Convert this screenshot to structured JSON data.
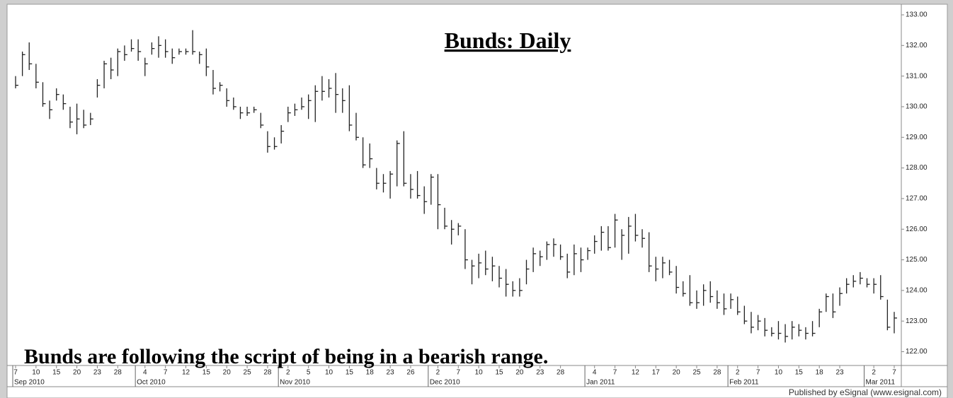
{
  "chart_data": {
    "type": "hlc",
    "title": "Bunds: Daily",
    "annotation": "Bunds are following the script of being in a bearish range.",
    "credit": "Published by eSignal (www.esignal.com)",
    "color": "#222222",
    "x": [
      "2010-09-07",
      "2010-09-08",
      "2010-09-09",
      "2010-09-10",
      "2010-09-13",
      "2010-09-14",
      "2010-09-15",
      "2010-09-16",
      "2010-09-17",
      "2010-09-20",
      "2010-09-21",
      "2010-09-22",
      "2010-09-23",
      "2010-09-24",
      "2010-09-27",
      "2010-09-28",
      "2010-09-29",
      "2010-09-30",
      "2010-10-01",
      "2010-10-04",
      "2010-10-05",
      "2010-10-06",
      "2010-10-07",
      "2010-10-08",
      "2010-10-11",
      "2010-10-12",
      "2010-10-13",
      "2010-10-14",
      "2010-10-15",
      "2010-10-18",
      "2010-10-19",
      "2010-10-20",
      "2010-10-21",
      "2010-10-22",
      "2010-10-25",
      "2010-10-26",
      "2010-10-27",
      "2010-10-28",
      "2010-10-29",
      "2010-11-01",
      "2010-11-02",
      "2010-11-03",
      "2010-11-04",
      "2010-11-05",
      "2010-11-08",
      "2010-11-09",
      "2010-11-10",
      "2010-11-11",
      "2010-11-12",
      "2010-11-15",
      "2010-11-16",
      "2010-11-17",
      "2010-11-18",
      "2010-11-19",
      "2010-11-22",
      "2010-11-23",
      "2010-11-24",
      "2010-11-25",
      "2010-11-26",
      "2010-11-29",
      "2010-11-30",
      "2010-12-01",
      "2010-12-02",
      "2010-12-03",
      "2010-12-06",
      "2010-12-07",
      "2010-12-08",
      "2010-12-09",
      "2010-12-10",
      "2010-12-13",
      "2010-12-14",
      "2010-12-15",
      "2010-12-16",
      "2010-12-17",
      "2010-12-20",
      "2010-12-21",
      "2010-12-22",
      "2010-12-23",
      "2010-12-24",
      "2010-12-27",
      "2010-12-28",
      "2010-12-29",
      "2010-12-30",
      "2010-12-31",
      "2011-01-03",
      "2011-01-04",
      "2011-01-05",
      "2011-01-06",
      "2011-01-07",
      "2011-01-10",
      "2011-01-11",
      "2011-01-12",
      "2011-01-13",
      "2011-01-14",
      "2011-01-17",
      "2011-01-18",
      "2011-01-19",
      "2011-01-20",
      "2011-01-21",
      "2011-01-24",
      "2011-01-25",
      "2011-01-26",
      "2011-01-27",
      "2011-01-28",
      "2011-01-31",
      "2011-02-01",
      "2011-02-02",
      "2011-02-03",
      "2011-02-04",
      "2011-02-07",
      "2011-02-08",
      "2011-02-09",
      "2011-02-10",
      "2011-02-11",
      "2011-02-14",
      "2011-02-15",
      "2011-02-16",
      "2011-02-17",
      "2011-02-18",
      "2011-02-21",
      "2011-02-22",
      "2011-02-23",
      "2011-02-24",
      "2011-02-25",
      "2011-02-28",
      "2011-03-01",
      "2011-03-02",
      "2011-03-03",
      "2011-03-04",
      "2011-03-07"
    ],
    "high": [
      131.0,
      131.8,
      132.1,
      131.4,
      130.8,
      130.2,
      130.6,
      130.4,
      130.0,
      130.1,
      129.9,
      129.8,
      130.9,
      131.5,
      131.6,
      131.9,
      132.0,
      132.2,
      132.2,
      131.6,
      132.1,
      132.3,
      132.2,
      131.9,
      131.9,
      131.9,
      132.5,
      131.8,
      131.9,
      131.2,
      130.8,
      130.6,
      130.3,
      130.0,
      130.0,
      130.0,
      129.8,
      129.2,
      129.0,
      129.4,
      130.0,
      130.1,
      130.3,
      130.4,
      130.7,
      131.0,
      130.9,
      131.1,
      130.6,
      130.7,
      129.8,
      129.0,
      128.8,
      128.0,
      127.8,
      127.9,
      128.9,
      129.2,
      127.8,
      127.9,
      127.4,
      127.8,
      127.8,
      126.7,
      126.3,
      126.2,
      126.0,
      125.0,
      125.2,
      125.3,
      125.1,
      124.8,
      124.7,
      124.3,
      124.4,
      125.0,
      125.4,
      125.3,
      125.6,
      125.7,
      125.5,
      125.2,
      125.5,
      125.4,
      125.4,
      125.8,
      126.1,
      126.1,
      126.5,
      126.0,
      126.4,
      126.5,
      126.0,
      125.9,
      125.1,
      125.1,
      125.0,
      124.8,
      124.3,
      124.5,
      124.0,
      124.2,
      124.3,
      124.0,
      123.9,
      123.9,
      123.8,
      123.5,
      123.3,
      123.2,
      123.1,
      122.8,
      123.0,
      122.9,
      123.0,
      122.9,
      122.8,
      123.0,
      123.4,
      123.9,
      123.9,
      124.1,
      124.4,
      124.5,
      124.6,
      124.4,
      124.4,
      124.5,
      123.7,
      123.3
    ],
    "low": [
      130.6,
      131.0,
      131.2,
      130.6,
      130.0,
      129.6,
      130.2,
      129.9,
      129.3,
      129.1,
      129.3,
      129.4,
      130.3,
      130.6,
      130.9,
      131.0,
      131.5,
      131.8,
      131.5,
      131.0,
      131.7,
      131.6,
      131.6,
      131.4,
      131.7,
      131.7,
      131.7,
      131.4,
      131.0,
      130.4,
      130.5,
      130.0,
      129.9,
      129.6,
      129.7,
      129.8,
      129.3,
      128.5,
      128.6,
      128.8,
      129.5,
      129.7,
      129.9,
      129.6,
      129.5,
      130.2,
      130.3,
      129.8,
      129.8,
      129.2,
      128.9,
      128.0,
      128.0,
      127.3,
      127.2,
      127.0,
      127.4,
      127.4,
      127.0,
      127.0,
      126.5,
      126.8,
      126.0,
      126.0,
      125.5,
      125.8,
      124.7,
      124.2,
      124.4,
      124.5,
      124.3,
      124.1,
      123.8,
      123.8,
      123.8,
      124.2,
      124.6,
      124.8,
      125.0,
      125.1,
      125.0,
      124.4,
      124.5,
      124.6,
      125.0,
      125.2,
      125.3,
      125.3,
      125.4,
      125.0,
      125.2,
      125.6,
      125.4,
      124.6,
      124.3,
      124.4,
      124.5,
      123.9,
      123.8,
      123.5,
      123.4,
      123.5,
      123.6,
      123.4,
      123.2,
      123.4,
      123.2,
      122.9,
      122.6,
      122.7,
      122.5,
      122.5,
      122.4,
      122.3,
      122.4,
      122.5,
      122.4,
      122.5,
      122.8,
      123.3,
      123.1,
      123.5,
      123.9,
      124.1,
      124.2,
      124.1,
      123.9,
      123.7,
      122.7,
      122.6
    ],
    "close": [
      130.7,
      131.7,
      131.4,
      130.8,
      130.1,
      129.9,
      130.4,
      130.1,
      129.5,
      129.6,
      129.4,
      129.6,
      130.7,
      131.4,
      131.2,
      131.8,
      131.7,
      131.9,
      131.8,
      131.4,
      131.9,
      132.0,
      131.8,
      131.6,
      131.8,
      131.8,
      131.8,
      131.7,
      131.3,
      130.6,
      130.7,
      130.2,
      130.0,
      129.8,
      129.8,
      129.9,
      129.4,
      128.7,
      128.7,
      129.2,
      129.8,
      129.9,
      130.0,
      130.2,
      130.5,
      130.5,
      130.6,
      130.4,
      130.2,
      129.4,
      129.0,
      128.1,
      128.3,
      127.5,
      127.5,
      127.8,
      128.8,
      127.5,
      127.3,
      127.1,
      126.9,
      127.7,
      126.8,
      126.1,
      126.0,
      126.1,
      125.0,
      124.8,
      124.9,
      124.7,
      124.8,
      124.4,
      124.2,
      124.0,
      124.0,
      124.7,
      125.2,
      125.1,
      125.5,
      125.5,
      125.1,
      124.6,
      125.2,
      125.0,
      125.3,
      125.6,
      125.9,
      125.4,
      126.3,
      125.8,
      126.1,
      125.8,
      125.7,
      124.8,
      124.7,
      124.9,
      124.6,
      124.1,
      123.9,
      123.6,
      123.6,
      124.0,
      123.8,
      123.6,
      123.4,
      123.7,
      123.3,
      123.0,
      122.8,
      123.0,
      122.7,
      122.6,
      122.6,
      122.5,
      122.8,
      122.7,
      122.6,
      122.6,
      123.3,
      123.8,
      123.3,
      123.9,
      124.2,
      124.3,
      124.4,
      124.2,
      124.2,
      123.8,
      122.8,
      123.1
    ],
    "ylim": [
      121.55,
      133.3
    ],
    "yticks": [
      {
        "value": 122,
        "label": "122.00"
      },
      {
        "value": 123,
        "label": "123.00"
      },
      {
        "value": 124,
        "label": "124.00"
      },
      {
        "value": 125,
        "label": "125.00"
      },
      {
        "value": 126,
        "label": "126.00"
      },
      {
        "value": 127,
        "label": "127.00"
      },
      {
        "value": 128,
        "label": "128.00"
      },
      {
        "value": 129,
        "label": "129.00"
      },
      {
        "value": 130,
        "label": "130.00"
      },
      {
        "value": 131,
        "label": "131.00"
      },
      {
        "value": 132,
        "label": "132.00"
      },
      {
        "value": 133,
        "label": "133.00"
      }
    ],
    "xticks": [
      {
        "value": "2010-09-07",
        "label": "7"
      },
      {
        "value": "2010-09-10",
        "label": "10"
      },
      {
        "value": "2010-09-15",
        "label": "15"
      },
      {
        "value": "2010-09-20",
        "label": "20"
      },
      {
        "value": "2010-09-23",
        "label": "23"
      },
      {
        "value": "2010-09-28",
        "label": "28"
      },
      {
        "value": "2010-10-04",
        "label": "4"
      },
      {
        "value": "2010-10-07",
        "label": "7"
      },
      {
        "value": "2010-10-12",
        "label": "12"
      },
      {
        "value": "2010-10-15",
        "label": "15"
      },
      {
        "value": "2010-10-20",
        "label": "20"
      },
      {
        "value": "2010-10-25",
        "label": "25"
      },
      {
        "value": "2010-10-28",
        "label": "28"
      },
      {
        "value": "2010-11-02",
        "label": "2"
      },
      {
        "value": "2010-11-05",
        "label": "5"
      },
      {
        "value": "2010-11-10",
        "label": "10"
      },
      {
        "value": "2010-11-15",
        "label": "15"
      },
      {
        "value": "2010-11-18",
        "label": "18"
      },
      {
        "value": "2010-11-23",
        "label": "23"
      },
      {
        "value": "2010-11-26",
        "label": "26"
      },
      {
        "value": "2010-12-02",
        "label": "2"
      },
      {
        "value": "2010-12-07",
        "label": "7"
      },
      {
        "value": "2010-12-10",
        "label": "10"
      },
      {
        "value": "2010-12-15",
        "label": "15"
      },
      {
        "value": "2010-12-20",
        "label": "20"
      },
      {
        "value": "2010-12-23",
        "label": "23"
      },
      {
        "value": "2010-12-28",
        "label": "28"
      },
      {
        "value": "2011-01-04",
        "label": "4"
      },
      {
        "value": "2011-01-07",
        "label": "7"
      },
      {
        "value": "2011-01-12",
        "label": "12"
      },
      {
        "value": "2011-01-17",
        "label": "17"
      },
      {
        "value": "2011-01-20",
        "label": "20"
      },
      {
        "value": "2011-01-25",
        "label": "25"
      },
      {
        "value": "2011-01-28",
        "label": "28"
      },
      {
        "value": "2011-02-02",
        "label": "2"
      },
      {
        "value": "2011-02-07",
        "label": "7"
      },
      {
        "value": "2011-02-10",
        "label": "10"
      },
      {
        "value": "2011-02-15",
        "label": "15"
      },
      {
        "value": "2011-02-18",
        "label": "18"
      },
      {
        "value": "2011-02-23",
        "label": "23"
      },
      {
        "value": "2011-03-02",
        "label": "2"
      },
      {
        "value": "2011-03-07",
        "label": "7"
      }
    ],
    "month_labels": [
      {
        "value": "2010-09-07",
        "label": "Sep 2010"
      },
      {
        "value": "2010-10-01",
        "label": "Oct 2010"
      },
      {
        "value": "2010-11-01",
        "label": "Nov 2010"
      },
      {
        "value": "2010-12-01",
        "label": "Dec 2010"
      },
      {
        "value": "2011-01-03",
        "label": "Jan 2011"
      },
      {
        "value": "2011-02-01",
        "label": "Feb 2011"
      },
      {
        "value": "2011-03-01",
        "label": "Mar 2011"
      }
    ]
  }
}
